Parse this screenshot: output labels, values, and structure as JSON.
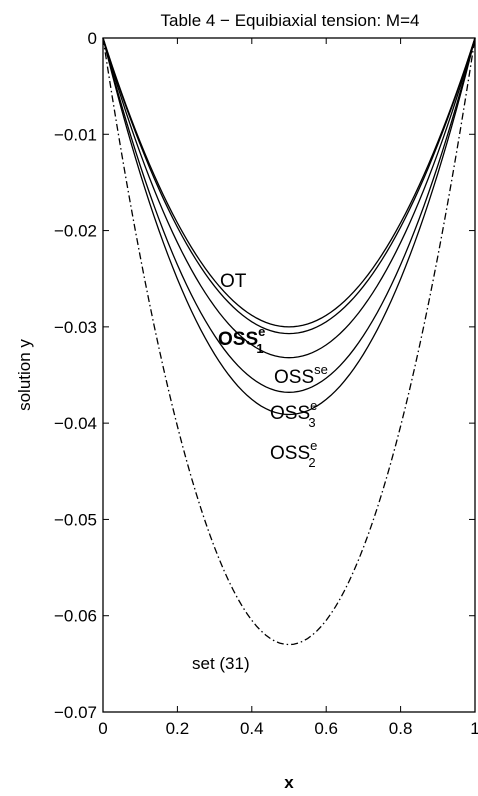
{
  "chart_data": {
    "type": "line",
    "title": "Table 4 − Equibiaxial tension: M=4",
    "xlabel": "x",
    "ylabel": "solution y",
    "xlim": [
      0,
      1
    ],
    "ylim": [
      -0.07,
      0
    ],
    "x_ticks": [
      0,
      0.2,
      0.4,
      0.6,
      0.8,
      1
    ],
    "x_tick_labels": [
      "0",
      "0.2",
      "0.4",
      "0.6",
      "0.8",
      "1"
    ],
    "y_ticks": [
      0,
      -0.01,
      -0.02,
      -0.03,
      -0.04,
      -0.05,
      -0.06,
      -0.07
    ],
    "y_tick_labels": [
      "0",
      "−0.01",
      "−0.02",
      "−0.03",
      "−0.04",
      "−0.05",
      "−0.06",
      "−0.07"
    ],
    "grid": false,
    "series": [
      {
        "name": "OT",
        "min_y": -0.03,
        "min_x": 0.5,
        "style": "solid"
      },
      {
        "name": "OSS_1^e",
        "min_y": -0.0307,
        "min_x": 0.5,
        "style": "solid"
      },
      {
        "name": "OSS^se",
        "min_y": -0.0332,
        "min_x": 0.5,
        "style": "solid"
      },
      {
        "name": "OSS_3^e",
        "min_y": -0.0368,
        "min_x": 0.5,
        "style": "solid"
      },
      {
        "name": "OSS_2^e",
        "min_y": -0.0391,
        "min_x": 0.5,
        "style": "solid"
      },
      {
        "name": "set (31)",
        "min_y": -0.063,
        "min_x": 0.5,
        "style": "dashdot"
      }
    ],
    "annotations": [
      {
        "base": "OT",
        "sup": "",
        "sub": "",
        "bold": false
      },
      {
        "base": "OSS",
        "sup": "e",
        "sub": "1",
        "bold": true
      },
      {
        "base": "OSS",
        "sup": "se",
        "sub": "",
        "bold": false
      },
      {
        "base": "OSS",
        "sup": "e",
        "sub": "3",
        "bold": false
      },
      {
        "base": "OSS",
        "sup": "e",
        "sub": "2",
        "bold": false
      },
      {
        "base": "set (31)",
        "sup": "",
        "sub": "",
        "bold": false
      }
    ]
  }
}
